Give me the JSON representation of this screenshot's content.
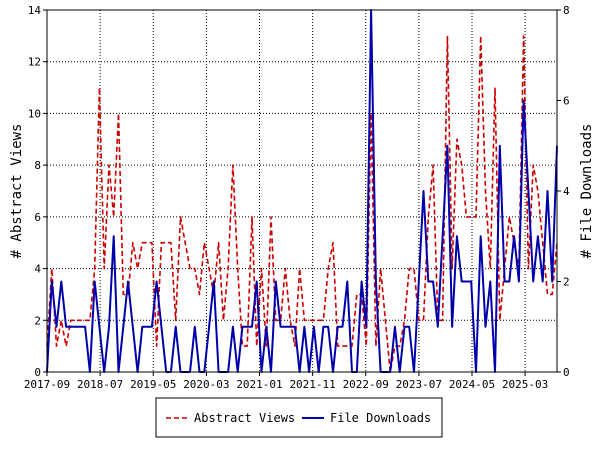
{
  "chart_data": {
    "type": "line",
    "title": "",
    "xlabel": "",
    "ylabel": "# Abstract Views",
    "y2label": "# File Downloads",
    "ylim": [
      0,
      14
    ],
    "y2lim": [
      0,
      8
    ],
    "yticks": [
      0,
      2,
      4,
      6,
      8,
      10,
      12,
      14
    ],
    "y2ticks": [
      0,
      2,
      4,
      6,
      8
    ],
    "x_tick_labels": [
      "2017-09",
      "2018-07",
      "2019-05",
      "2020-03",
      "2021-01",
      "2021-11",
      "2022-09",
      "2023-07",
      "2024-05",
      "2025-03"
    ],
    "x_start": "2017-09",
    "x_end": "2025-09",
    "grid": true,
    "legend_position": "bottom",
    "series": [
      {
        "name": "Abstract Views",
        "axis": "left",
        "color": "#cc0000",
        "style": "dashed",
        "values": [
          1,
          4,
          1,
          2,
          1,
          2,
          2,
          2,
          2,
          2,
          4,
          11,
          4,
          8,
          6,
          10,
          3,
          3,
          5,
          4,
          5,
          5,
          5,
          1,
          5,
          5,
          5,
          2,
          6,
          5,
          4,
          4,
          3,
          5,
          4,
          3,
          5,
          2,
          4,
          8,
          4,
          1,
          1,
          6,
          1,
          4,
          1,
          6,
          2,
          2,
          4,
          2,
          1,
          4,
          2,
          2,
          2,
          2,
          2,
          4,
          5,
          1,
          1,
          1,
          1,
          3,
          3,
          1,
          10,
          1,
          4,
          2,
          0,
          1,
          1,
          2,
          4,
          4,
          2,
          2,
          6,
          8,
          2,
          2,
          13,
          4,
          9,
          8,
          6,
          6,
          6,
          13,
          7,
          4,
          11,
          2,
          4,
          6,
          5,
          4,
          13,
          4,
          8,
          7,
          5,
          3,
          3,
          5
        ]
      },
      {
        "name": "File Downloads",
        "axis": "right",
        "color": "#0000aa",
        "style": "solid",
        "values": [
          0,
          2,
          1,
          2,
          1,
          1,
          1,
          1,
          1,
          0,
          2,
          1,
          0,
          1,
          3,
          0,
          1,
          2,
          1,
          0,
          1,
          1,
          1,
          2,
          1,
          0,
          0,
          1,
          0,
          0,
          0,
          1,
          0,
          0,
          1,
          2,
          0,
          0,
          0,
          1,
          0,
          1,
          1,
          1,
          2,
          0,
          1,
          0,
          2,
          1,
          1,
          1,
          1,
          0,
          1,
          0,
          1,
          0,
          1,
          1,
          0,
          1,
          1,
          2,
          0,
          0,
          2,
          1,
          8,
          2,
          0,
          0,
          0,
          1,
          0,
          1,
          1,
          0,
          2,
          4,
          2,
          2,
          1,
          3,
          5,
          1,
          3,
          2,
          2,
          2,
          0,
          3,
          1,
          2,
          0,
          5,
          2,
          2,
          3,
          2,
          6,
          4,
          2,
          3,
          2,
          4,
          2,
          5
        ]
      }
    ]
  }
}
